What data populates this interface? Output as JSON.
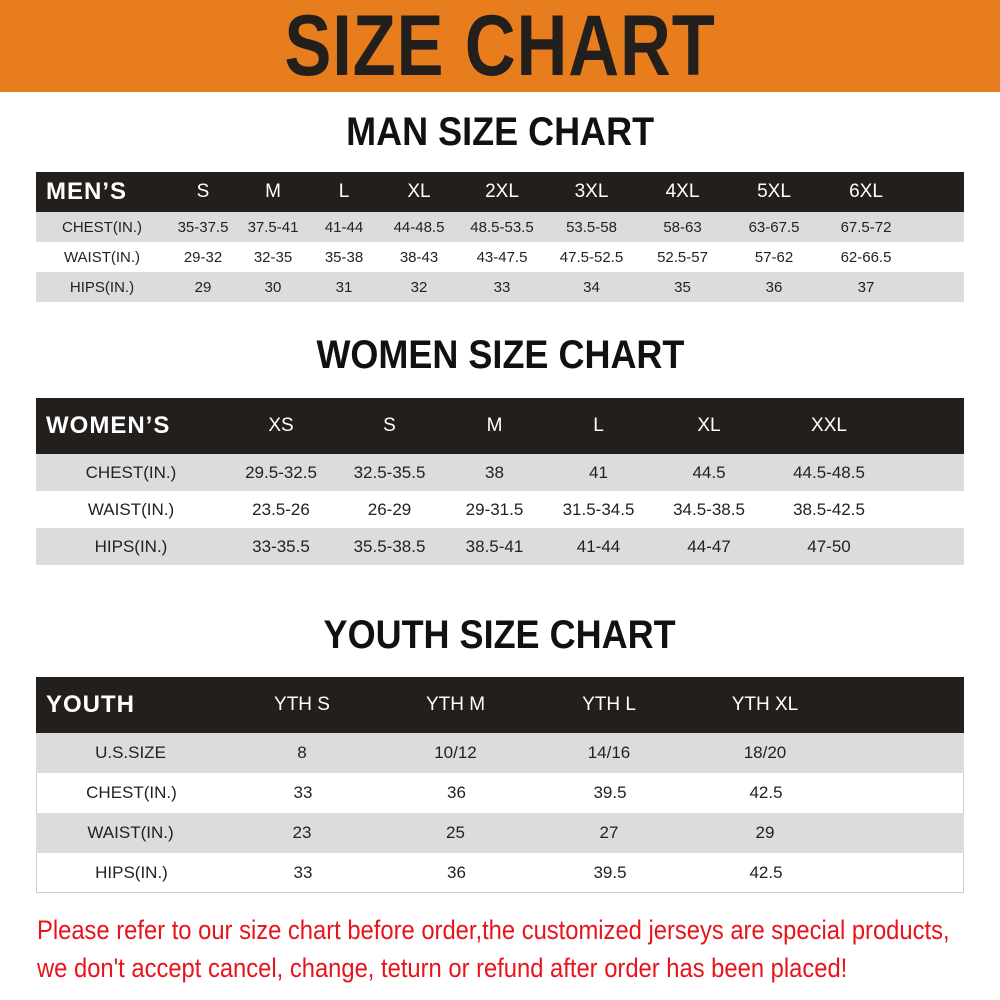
{
  "title": "SIZE CHART",
  "colors": {
    "banner": "#e87d1e",
    "header_bg": "#231f1c",
    "row_gray": "#dcdcdc",
    "notice": "#e8141c"
  },
  "men": {
    "title": "MAN SIZE CHART",
    "header": "MEN’S",
    "sizes": [
      "S",
      "M",
      "L",
      "XL",
      "2XL",
      "3XL",
      "4XL",
      "5XL",
      "6XL"
    ],
    "rows": [
      {
        "label": "CHEST(IN.)",
        "values": [
          "35-37.5",
          "37.5-41",
          "41-44",
          "44-48.5",
          "48.5-53.5",
          "53.5-58",
          "58-63",
          "63-67.5",
          "67.5-72"
        ]
      },
      {
        "label": "WAIST(IN.)",
        "values": [
          "29-32",
          "32-35",
          "35-38",
          "38-43",
          "43-47.5",
          "47.5-52.5",
          "52.5-57",
          "57-62",
          "62-66.5"
        ]
      },
      {
        "label": "HIPS(IN.)",
        "values": [
          "29",
          "30",
          "31",
          "32",
          "33",
          "34",
          "35",
          "36",
          "37"
        ]
      }
    ]
  },
  "women": {
    "title": "WOMEN SIZE CHART",
    "header": "WOMEN’S",
    "sizes": [
      "XS",
      "S",
      "M",
      "L",
      "XL",
      "XXL"
    ],
    "rows": [
      {
        "label": "CHEST(IN.)",
        "values": [
          "29.5-32.5",
          "32.5-35.5",
          "38",
          "41",
          "44.5",
          "44.5-48.5"
        ]
      },
      {
        "label": "WAIST(IN.)",
        "values": [
          "23.5-26",
          "26-29",
          "29-31.5",
          "31.5-34.5",
          "34.5-38.5",
          "38.5-42.5"
        ]
      },
      {
        "label": "HIPS(IN.)",
        "values": [
          "33-35.5",
          "35.5-38.5",
          "38.5-41",
          "41-44",
          "44-47",
          "47-50"
        ]
      }
    ]
  },
  "youth": {
    "title": "YOUTH SIZE CHART",
    "header": "YOUTH",
    "sizes": [
      "YTH S",
      "YTH M",
      "YTH L",
      "YTH XL"
    ],
    "rows": [
      {
        "label": "U.S.SIZE",
        "values": [
          "8",
          "10/12",
          "14/16",
          "18/20"
        ]
      },
      {
        "label": "CHEST(IN.)",
        "values": [
          "33",
          "36",
          "39.5",
          "42.5"
        ]
      },
      {
        "label": "WAIST(IN.)",
        "values": [
          "23",
          "25",
          "27",
          "29"
        ]
      },
      {
        "label": "HIPS(IN.)",
        "values": [
          "33",
          "36",
          "39.5",
          "42.5"
        ]
      }
    ]
  },
  "notice": [
    "Please refer to our size chart before order,the customized jerseys are special products,",
    "we don't accept cancel, change, teturn or refund after order has been placed!"
  ]
}
